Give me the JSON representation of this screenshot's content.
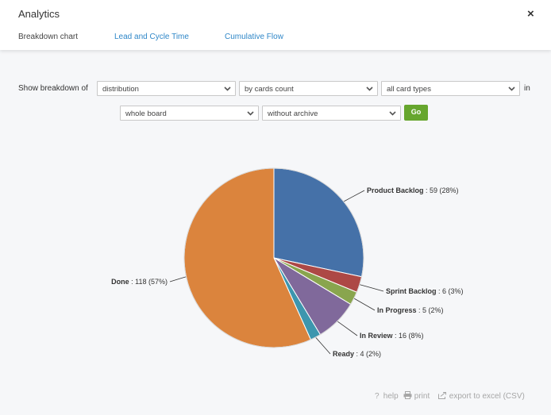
{
  "window": {
    "title": "Analytics"
  },
  "tabs": [
    {
      "label": "Breakdown chart"
    },
    {
      "label": "Lead and Cycle Time"
    },
    {
      "label": "Cumulative Flow"
    }
  ],
  "filters": {
    "show_label": "Show breakdown of",
    "in_label": "in",
    "breakdown": "distribution",
    "measure": "by cards count",
    "card_types": "all card types",
    "scope": "whole board",
    "archive": "without archive",
    "go_label": "Go"
  },
  "chart_data": {
    "type": "pie",
    "slices": [
      {
        "name": "Product Backlog",
        "value": 59,
        "percent": 28,
        "label": " : 59 (28%)",
        "color": "#4571a8"
      },
      {
        "name": "Sprint Backlog",
        "value": 6,
        "percent": 3,
        "label": " : 6 (3%)",
        "color": "#ad4845"
      },
      {
        "name": "In Progress",
        "value": 5,
        "percent": 2,
        "label": " : 5 (2%)",
        "color": "#89a54e"
      },
      {
        "name": "In Review",
        "value": 16,
        "percent": 8,
        "label": " : 16 (8%)",
        "color": "#80699b"
      },
      {
        "name": "Ready",
        "value": 4,
        "percent": 2,
        "label": " : 4 (2%)",
        "color": "#3d96ae"
      },
      {
        "name": "Done",
        "value": 118,
        "percent": 57,
        "label": " : 118 (57%)",
        "color": "#db843d"
      }
    ]
  },
  "footer": {
    "help": "help",
    "print": "print",
    "export": "export to excel (CSV)"
  }
}
